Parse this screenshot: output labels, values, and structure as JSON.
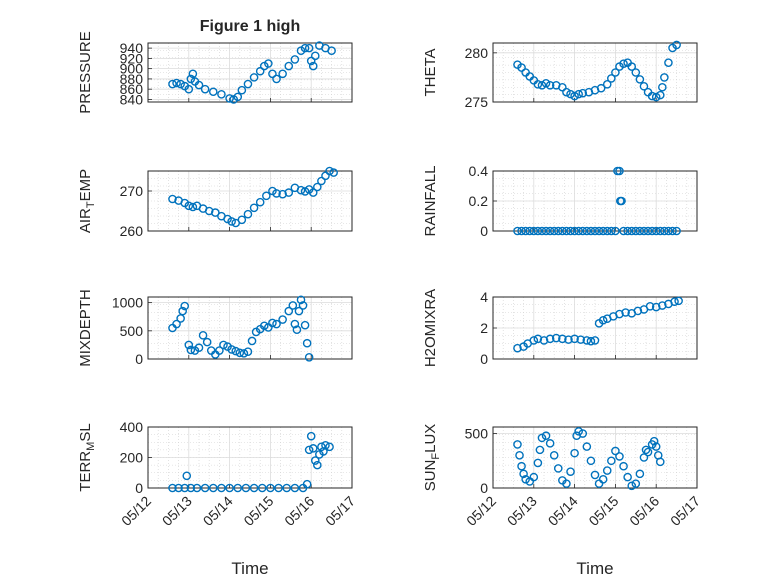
{
  "figure": {
    "title": "Figure 1 high",
    "marker_color": "#0072BD",
    "x_ticks": [
      "05/12",
      "05/13",
      "05/14",
      "05/15",
      "05/16",
      "05/17"
    ],
    "xlabel": "Time",
    "xlim": [
      "05/12",
      "05/17"
    ]
  },
  "chart_data": [
    {
      "type": "scatter",
      "ylabel": "PRESSURE",
      "ylim": [
        835,
        950
      ],
      "yticks": [
        840,
        860,
        880,
        900,
        920,
        940
      ],
      "grid": true,
      "points": [
        [
          12.6,
          870
        ],
        [
          12.7,
          872
        ],
        [
          12.8,
          870
        ],
        [
          12.9,
          866
        ],
        [
          13.0,
          860
        ],
        [
          13.05,
          880
        ],
        [
          13.1,
          890
        ],
        [
          13.15,
          875
        ],
        [
          13.25,
          868
        ],
        [
          13.4,
          860
        ],
        [
          13.6,
          855
        ],
        [
          13.8,
          850
        ],
        [
          14.0,
          842
        ],
        [
          14.1,
          840
        ],
        [
          14.2,
          845
        ],
        [
          14.3,
          858
        ],
        [
          14.45,
          870
        ],
        [
          14.6,
          883
        ],
        [
          14.75,
          895
        ],
        [
          14.85,
          905
        ],
        [
          14.95,
          910
        ],
        [
          15.05,
          890
        ],
        [
          15.15,
          880
        ],
        [
          15.3,
          890
        ],
        [
          15.45,
          905
        ],
        [
          15.6,
          918
        ],
        [
          15.75,
          935
        ],
        [
          15.85,
          940
        ],
        [
          15.95,
          940
        ],
        [
          16.0,
          915
        ],
        [
          16.05,
          905
        ],
        [
          16.1,
          925
        ],
        [
          16.2,
          945
        ],
        [
          16.35,
          940
        ],
        [
          16.5,
          935
        ]
      ]
    },
    {
      "type": "scatter",
      "ylabel": "THETA",
      "ylim": [
        275,
        281
      ],
      "yticks": [
        275,
        280
      ],
      "grid": true,
      "points": [
        [
          12.6,
          278.8
        ],
        [
          12.7,
          278.5
        ],
        [
          12.8,
          278.0
        ],
        [
          12.9,
          277.6
        ],
        [
          13.0,
          277.2
        ],
        [
          13.1,
          276.8
        ],
        [
          13.2,
          276.7
        ],
        [
          13.3,
          276.9
        ],
        [
          13.4,
          276.7
        ],
        [
          13.55,
          276.7
        ],
        [
          13.7,
          276.5
        ],
        [
          13.8,
          276.0
        ],
        [
          13.9,
          275.8
        ],
        [
          14.0,
          275.6
        ],
        [
          14.1,
          275.8
        ],
        [
          14.2,
          275.9
        ],
        [
          14.35,
          276.0
        ],
        [
          14.5,
          276.2
        ],
        [
          14.65,
          276.4
        ],
        [
          14.8,
          276.8
        ],
        [
          14.9,
          277.4
        ],
        [
          15.0,
          278.0
        ],
        [
          15.1,
          278.6
        ],
        [
          15.2,
          278.9
        ],
        [
          15.3,
          279.0
        ],
        [
          15.4,
          278.6
        ],
        [
          15.5,
          278.0
        ],
        [
          15.6,
          277.3
        ],
        [
          15.7,
          276.6
        ],
        [
          15.8,
          276.0
        ],
        [
          15.9,
          275.6
        ],
        [
          16.0,
          275.5
        ],
        [
          16.1,
          275.7
        ],
        [
          16.15,
          276.5
        ],
        [
          16.2,
          277.5
        ],
        [
          16.3,
          279.0
        ],
        [
          16.4,
          280.5
        ],
        [
          16.5,
          280.8
        ]
      ]
    },
    {
      "type": "scatter",
      "ylabel": "AIR_TEMP",
      "ylim": [
        260,
        275
      ],
      "yticks": [
        260,
        270
      ],
      "grid": true,
      "points": [
        [
          12.6,
          268
        ],
        [
          12.75,
          267.6
        ],
        [
          12.9,
          267
        ],
        [
          13.0,
          266.3
        ],
        [
          13.1,
          266
        ],
        [
          13.2,
          266.3
        ],
        [
          13.35,
          265.6
        ],
        [
          13.5,
          265
        ],
        [
          13.65,
          264.6
        ],
        [
          13.8,
          263.7
        ],
        [
          13.95,
          263
        ],
        [
          14.05,
          262.4
        ],
        [
          14.15,
          262
        ],
        [
          14.3,
          262.8
        ],
        [
          14.45,
          264.2
        ],
        [
          14.6,
          265.8
        ],
        [
          14.75,
          267.2
        ],
        [
          14.9,
          268.8
        ],
        [
          15.05,
          270
        ],
        [
          15.15,
          269.4
        ],
        [
          15.3,
          269.2
        ],
        [
          15.45,
          269.6
        ],
        [
          15.6,
          270.8
        ],
        [
          15.75,
          270.2
        ],
        [
          15.85,
          269.9
        ],
        [
          15.95,
          270.4
        ],
        [
          16.05,
          269.6
        ],
        [
          16.15,
          271
        ],
        [
          16.25,
          272.5
        ],
        [
          16.35,
          273.8
        ],
        [
          16.45,
          275
        ],
        [
          16.55,
          274.6
        ]
      ]
    },
    {
      "type": "scatter",
      "ylabel": "RAINFALL",
      "ylim": [
        0,
        0.4
      ],
      "yticks": [
        0,
        0.2,
        0.4
      ],
      "grid": true,
      "points": [
        [
          12.6,
          0
        ],
        [
          12.7,
          0
        ],
        [
          12.8,
          0
        ],
        [
          12.9,
          0
        ],
        [
          13.0,
          0
        ],
        [
          13.1,
          0
        ],
        [
          13.2,
          0
        ],
        [
          13.3,
          0
        ],
        [
          13.4,
          0
        ],
        [
          13.5,
          0
        ],
        [
          13.6,
          0
        ],
        [
          13.7,
          0
        ],
        [
          13.8,
          0
        ],
        [
          13.9,
          0
        ],
        [
          14.0,
          0
        ],
        [
          14.1,
          0
        ],
        [
          14.2,
          0
        ],
        [
          14.3,
          0
        ],
        [
          14.4,
          0
        ],
        [
          14.5,
          0
        ],
        [
          14.6,
          0
        ],
        [
          14.7,
          0
        ],
        [
          14.8,
          0
        ],
        [
          14.9,
          0
        ],
        [
          15.0,
          0
        ],
        [
          15.05,
          0.4
        ],
        [
          15.1,
          0.4
        ],
        [
          15.12,
          0.2
        ],
        [
          15.15,
          0.2
        ],
        [
          15.2,
          0
        ],
        [
          15.3,
          0
        ],
        [
          15.4,
          0
        ],
        [
          15.5,
          0
        ],
        [
          15.6,
          0
        ],
        [
          15.7,
          0
        ],
        [
          15.8,
          0
        ],
        [
          15.9,
          0
        ],
        [
          16.0,
          0
        ],
        [
          16.1,
          0
        ],
        [
          16.2,
          0
        ],
        [
          16.3,
          0
        ],
        [
          16.4,
          0
        ],
        [
          16.5,
          0
        ]
      ]
    },
    {
      "type": "scatter",
      "ylabel": "MIXDEPTH",
      "ylim": [
        0,
        1100
      ],
      "yticks": [
        0,
        500,
        1000
      ],
      "grid": true,
      "points": [
        [
          12.6,
          550
        ],
        [
          12.7,
          620
        ],
        [
          12.8,
          720
        ],
        [
          12.85,
          850
        ],
        [
          12.9,
          940
        ],
        [
          13.0,
          250
        ],
        [
          13.05,
          160
        ],
        [
          13.15,
          150
        ],
        [
          13.25,
          200
        ],
        [
          13.35,
          420
        ],
        [
          13.45,
          300
        ],
        [
          13.55,
          150
        ],
        [
          13.65,
          80
        ],
        [
          13.75,
          150
        ],
        [
          13.85,
          250
        ],
        [
          13.95,
          220
        ],
        [
          14.05,
          170
        ],
        [
          14.15,
          140
        ],
        [
          14.25,
          110
        ],
        [
          14.35,
          100
        ],
        [
          14.45,
          130
        ],
        [
          14.55,
          320
        ],
        [
          14.65,
          480
        ],
        [
          14.75,
          530
        ],
        [
          14.85,
          590
        ],
        [
          14.95,
          560
        ],
        [
          15.05,
          640
        ],
        [
          15.15,
          620
        ],
        [
          15.3,
          700
        ],
        [
          15.45,
          850
        ],
        [
          15.55,
          950
        ],
        [
          15.6,
          620
        ],
        [
          15.65,
          520
        ],
        [
          15.7,
          850
        ],
        [
          15.75,
          1050
        ],
        [
          15.8,
          950
        ],
        [
          15.85,
          600
        ],
        [
          15.9,
          280
        ],
        [
          15.95,
          30
        ]
      ]
    },
    {
      "type": "scatter",
      "ylabel": "H2OMIXRA",
      "ylim": [
        0,
        4
      ],
      "yticks": [
        0,
        2,
        4
      ],
      "grid": true,
      "points": [
        [
          12.6,
          0.7
        ],
        [
          12.75,
          0.8
        ],
        [
          12.85,
          1.0
        ],
        [
          13.0,
          1.2
        ],
        [
          13.1,
          1.3
        ],
        [
          13.25,
          1.2
        ],
        [
          13.4,
          1.3
        ],
        [
          13.55,
          1.35
        ],
        [
          13.7,
          1.3
        ],
        [
          13.85,
          1.25
        ],
        [
          14.0,
          1.3
        ],
        [
          14.15,
          1.25
        ],
        [
          14.3,
          1.2
        ],
        [
          14.4,
          1.15
        ],
        [
          14.5,
          1.2
        ],
        [
          14.6,
          2.3
        ],
        [
          14.7,
          2.5
        ],
        [
          14.8,
          2.6
        ],
        [
          14.95,
          2.75
        ],
        [
          15.1,
          2.9
        ],
        [
          15.25,
          3.0
        ],
        [
          15.4,
          2.95
        ],
        [
          15.55,
          3.1
        ],
        [
          15.7,
          3.2
        ],
        [
          15.85,
          3.4
        ],
        [
          16.0,
          3.35
        ],
        [
          16.15,
          3.45
        ],
        [
          16.3,
          3.55
        ],
        [
          16.45,
          3.7
        ],
        [
          16.55,
          3.75
        ]
      ]
    },
    {
      "type": "scatter",
      "ylabel": "TERR_MSL",
      "ylim": [
        0,
        400
      ],
      "yticks": [
        0,
        200,
        400
      ],
      "grid": true,
      "points": [
        [
          12.6,
          0
        ],
        [
          12.75,
          0
        ],
        [
          12.9,
          0
        ],
        [
          12.95,
          80
        ],
        [
          13.05,
          0
        ],
        [
          13.2,
          0
        ],
        [
          13.4,
          0
        ],
        [
          13.6,
          0
        ],
        [
          13.8,
          0
        ],
        [
          14.0,
          0
        ],
        [
          14.2,
          0
        ],
        [
          14.4,
          0
        ],
        [
          14.6,
          0
        ],
        [
          14.8,
          0
        ],
        [
          15.0,
          0
        ],
        [
          15.2,
          0
        ],
        [
          15.4,
          0
        ],
        [
          15.6,
          0
        ],
        [
          15.8,
          0
        ],
        [
          15.9,
          25
        ],
        [
          15.95,
          250
        ],
        [
          16.0,
          340
        ],
        [
          16.05,
          260
        ],
        [
          16.1,
          180
        ],
        [
          16.15,
          150
        ],
        [
          16.2,
          220
        ],
        [
          16.25,
          270
        ],
        [
          16.3,
          240
        ],
        [
          16.35,
          280
        ],
        [
          16.45,
          270
        ]
      ]
    },
    {
      "type": "scatter",
      "ylabel": "SUN_FLUX",
      "ylim": [
        0,
        560
      ],
      "yticks": [
        0,
        500
      ],
      "grid": true,
      "points": [
        [
          12.6,
          400
        ],
        [
          12.65,
          300
        ],
        [
          12.7,
          200
        ],
        [
          12.75,
          130
        ],
        [
          12.8,
          80
        ],
        [
          12.9,
          60
        ],
        [
          13.0,
          100
        ],
        [
          13.1,
          230
        ],
        [
          13.15,
          350
        ],
        [
          13.2,
          460
        ],
        [
          13.3,
          480
        ],
        [
          13.4,
          410
        ],
        [
          13.5,
          300
        ],
        [
          13.6,
          180
        ],
        [
          13.7,
          70
        ],
        [
          13.8,
          40
        ],
        [
          13.9,
          150
        ],
        [
          14.0,
          320
        ],
        [
          14.05,
          480
        ],
        [
          14.1,
          520
        ],
        [
          14.2,
          500
        ],
        [
          14.3,
          380
        ],
        [
          14.4,
          250
        ],
        [
          14.5,
          120
        ],
        [
          14.6,
          40
        ],
        [
          14.7,
          80
        ],
        [
          14.8,
          160
        ],
        [
          14.9,
          250
        ],
        [
          15.0,
          340
        ],
        [
          15.1,
          290
        ],
        [
          15.2,
          200
        ],
        [
          15.3,
          100
        ],
        [
          15.4,
          20
        ],
        [
          15.5,
          40
        ],
        [
          15.6,
          130
        ],
        [
          15.7,
          280
        ],
        [
          15.75,
          350
        ],
        [
          15.8,
          330
        ],
        [
          15.9,
          400
        ],
        [
          15.95,
          430
        ],
        [
          16.0,
          380
        ],
        [
          16.05,
          300
        ],
        [
          16.1,
          240
        ]
      ]
    }
  ]
}
